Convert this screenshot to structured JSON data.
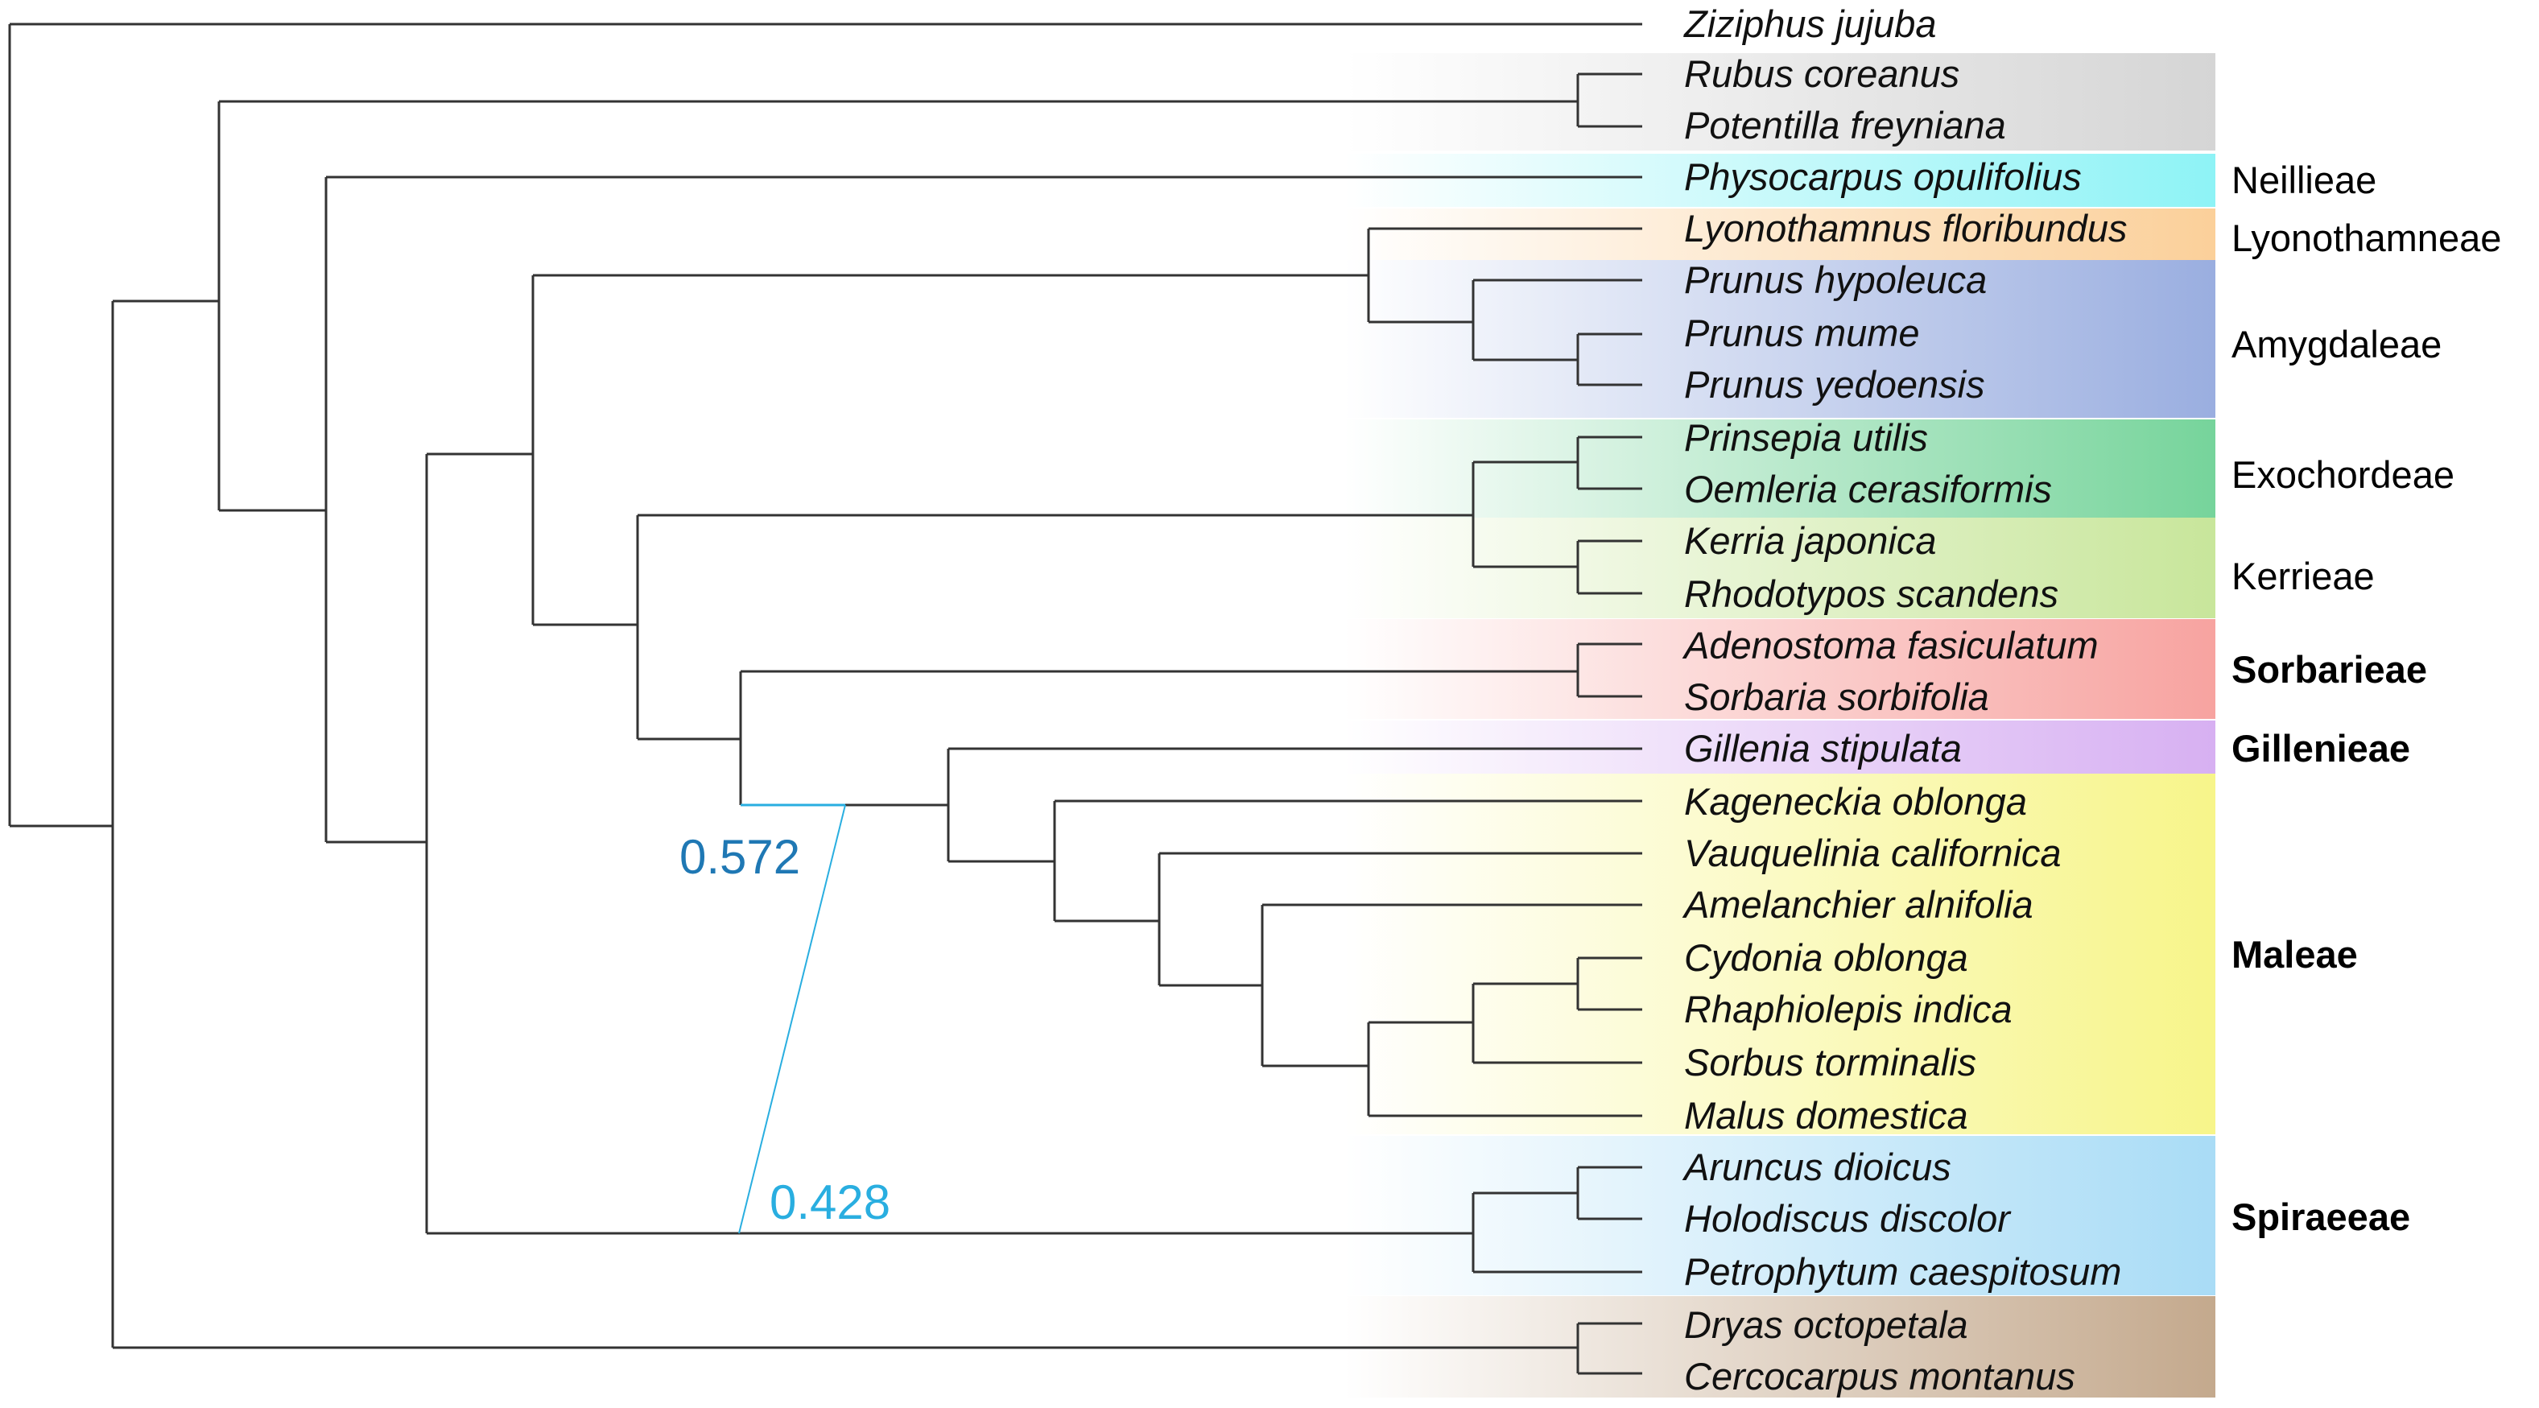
{
  "taxa": [
    "Ziziphus jujuba",
    "Rubus coreanus",
    "Potentilla freyniana",
    "Physocarpus opulifolius",
    "Lyonothamnus floribundus",
    "Prunus hypoleuca",
    "Prunus mume",
    "Prunus yedoensis",
    "Prinsepia utilis",
    "Oemleria cerasiformis",
    "Kerria japonica",
    "Rhodotypos scandens",
    "Adenostoma fasiculatum",
    "Sorbaria sorbifolia",
    "Gillenia stipulata",
    "Kageneckia oblonga",
    "Vauquelinia californica",
    "Amelanchier alnifolia",
    "Cydonia oblonga",
    "Rhaphiolepis indica",
    "Sorbus torminalis",
    "Malus domestica",
    "Aruncus dioicus",
    "Holodiscus discolor",
    "Petrophytum caespitosum",
    "Dryas octopetala",
    "Cercocarpus montanus"
  ],
  "tribes": [
    {
      "label": "Neillieae",
      "bold": false
    },
    {
      "label": "Lyonothamneae",
      "bold": false
    },
    {
      "label": "Amygdaleae",
      "bold": false
    },
    {
      "label": "Exochordeae",
      "bold": false
    },
    {
      "label": "Kerrieae",
      "bold": false
    },
    {
      "label": "Sorbarieae",
      "bold": true
    },
    {
      "label": "Gillenieae",
      "bold": true
    },
    {
      "label": "Maleae",
      "bold": true
    },
    {
      "label": "Spiraeeae",
      "bold": true
    }
  ],
  "clade_colors": {
    "grey": "#d5d5d5",
    "neillieae": "#8ef3f6",
    "lyonothamneae": "#fbd09a",
    "amygdaleae": "#9aaee0",
    "exochordeae": "#76d49b",
    "kerrieae": "#c8e69b",
    "sorbarieae": "#f7a3a0",
    "gillenieae": "#d7b0f2",
    "maleae": "#f7f58a",
    "spiraeeae": "#a9dcf6",
    "brown": "#c4a98d"
  },
  "support_values": {
    "upper": {
      "value": "0.572",
      "color": "#1f78b4"
    },
    "lower": {
      "value": "0.428",
      "color": "#29aee0"
    }
  }
}
